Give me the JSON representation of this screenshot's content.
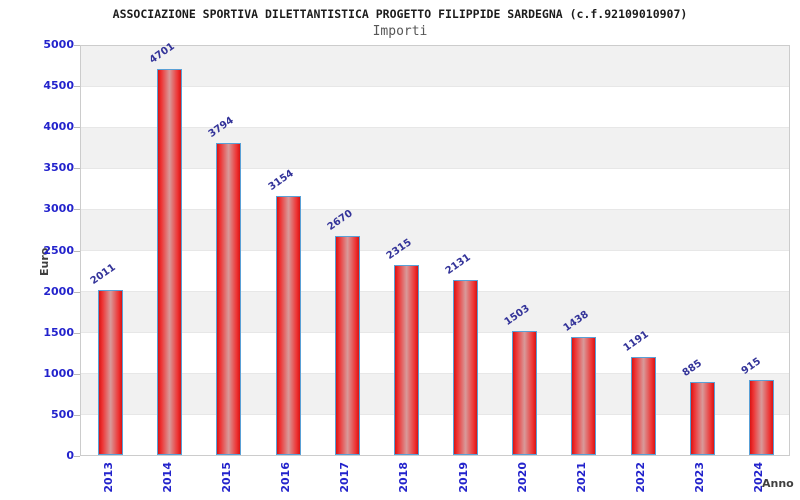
{
  "header": {
    "title": "ASSOCIAZIONE SPORTIVA DILETTANTISTICA PROGETTO FILIPPIDE SARDEGNA (c.f.92109010907)",
    "subtitle": "Importi"
  },
  "chart_data": {
    "type": "bar",
    "title": "Importi",
    "categories": [
      "2013",
      "2014",
      "2015",
      "2016",
      "2017",
      "2018",
      "2019",
      "2020",
      "2021",
      "2022",
      "2023",
      "2024"
    ],
    "values": [
      2011,
      4701,
      3794,
      3154,
      2670,
      2315,
      2131,
      1503,
      1438,
      1191,
      885,
      915
    ],
    "xlabel": "Anno",
    "ylabel": "Euro",
    "ylim": [
      0,
      5000
    ],
    "ytick_step": 500,
    "ytick_labels": [
      "0",
      "500",
      "1000",
      "1500",
      "2000",
      "2500",
      "3000",
      "3500",
      "4000",
      "4500",
      "5000"
    ],
    "grid": "alternating-horizontal-bands",
    "legend": "none",
    "colors": {
      "bar_edge_red": "#d81414",
      "bar_center_red": "#d89a9a",
      "bar_border_blue": "#59a0d6",
      "axis_tick_blue": "#2323cc",
      "value_label_navy": "#333399",
      "band_gray": "#f1f1f1",
      "band_white": "#ffffff",
      "plot_border_gray": "#cccccc",
      "axis_title_gray": "#3f3f3f",
      "subtitle_gray": "#575757"
    }
  }
}
